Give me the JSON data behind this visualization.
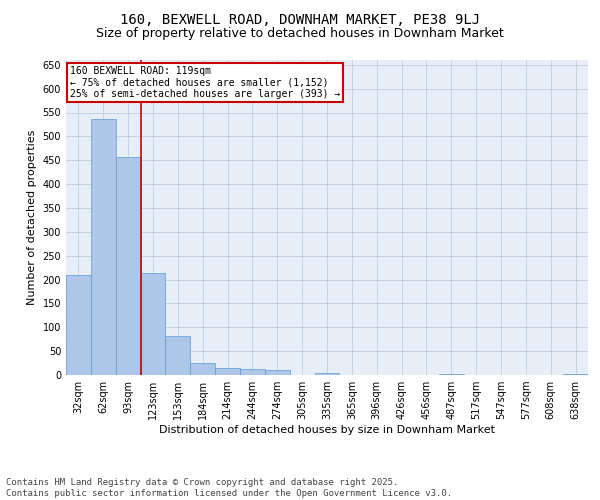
{
  "title": "160, BEXWELL ROAD, DOWNHAM MARKET, PE38 9LJ",
  "subtitle": "Size of property relative to detached houses in Downham Market",
  "xlabel": "Distribution of detached houses by size in Downham Market",
  "ylabel": "Number of detached properties",
  "bar_color": "#aec6e8",
  "bar_edge_color": "#5b9bd5",
  "background_color": "#e8eef8",
  "grid_color": "#b8c8dc",
  "categories": [
    "32sqm",
    "62sqm",
    "93sqm",
    "123sqm",
    "153sqm",
    "184sqm",
    "214sqm",
    "244sqm",
    "274sqm",
    "305sqm",
    "335sqm",
    "365sqm",
    "396sqm",
    "426sqm",
    "456sqm",
    "487sqm",
    "517sqm",
    "547sqm",
    "577sqm",
    "608sqm",
    "638sqm"
  ],
  "values": [
    209,
    536,
    456,
    213,
    82,
    26,
    15,
    12,
    10,
    0,
    5,
    0,
    0,
    0,
    0,
    3,
    0,
    0,
    0,
    0,
    3
  ],
  "vline_x": 2.5,
  "vline_color": "#cc0000",
  "annotation_text": "160 BEXWELL ROAD: 119sqm\n← 75% of detached houses are smaller (1,152)\n25% of semi-detached houses are larger (393) →",
  "ylim": [
    0,
    660
  ],
  "yticks": [
    0,
    50,
    100,
    150,
    200,
    250,
    300,
    350,
    400,
    450,
    500,
    550,
    600,
    650
  ],
  "footer": "Contains HM Land Registry data © Crown copyright and database right 2025.\nContains public sector information licensed under the Open Government Licence v3.0.",
  "title_fontsize": 10,
  "subtitle_fontsize": 9,
  "label_fontsize": 8,
  "tick_fontsize": 7,
  "footer_fontsize": 6.5
}
